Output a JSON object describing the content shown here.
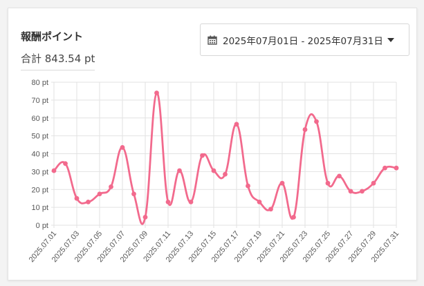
{
  "widget": {
    "title": "報酬ポイント",
    "total": "合計 843.54 pt",
    "date_range": "2025年07月01日 - 2025年07月31日"
  },
  "chart_data": {
    "type": "line",
    "title": "",
    "xlabel": "",
    "ylabel": "",
    "ylim": [
      0,
      80
    ],
    "grid": true,
    "y_ticks": [
      "0 pt",
      "10 pt",
      "20 pt",
      "30 pt",
      "40 pt",
      "50 pt",
      "60 pt",
      "70 pt",
      "80 pt"
    ],
    "x": [
      "2025.07.01",
      "2025.07.02",
      "2025.07.03",
      "2025.07.04",
      "2025.07.05",
      "2025.07.06",
      "2025.07.07",
      "2025.07.08",
      "2025.07.09",
      "2025.07.10",
      "2025.07.11",
      "2025.07.12",
      "2025.07.13",
      "2025.07.14",
      "2025.07.15",
      "2025.07.16",
      "2025.07.17",
      "2025.07.18",
      "2025.07.19",
      "2025.07.20",
      "2025.07.21",
      "2025.07.22",
      "2025.07.23",
      "2025.07.24",
      "2025.07.25",
      "2025.07.26",
      "2025.07.27",
      "2025.07.28",
      "2025.07.29",
      "2025.07.30",
      "2025.07.31"
    ],
    "x_tick_labels": [
      "2025.07.01",
      "2025.07.03",
      "2025.07.05",
      "2025.07.07",
      "2025.07.09",
      "2025.07.11",
      "2025.07.13",
      "2025.07.15",
      "2025.07.17",
      "2025.07.19",
      "2025.07.21",
      "2025.07.23",
      "2025.07.25",
      "2025.07.27",
      "2025.07.29",
      "2025.07.31"
    ],
    "series": [
      {
        "color": "#f26a8d",
        "values": [
          30.5,
          34.5,
          15,
          13,
          17.5,
          21.5,
          43.5,
          17.5,
          4.5,
          74,
          13,
          30.5,
          13,
          39,
          30.5,
          28.5,
          56.5,
          22,
          13,
          9,
          23.5,
          4.5,
          53.5,
          58,
          23.5,
          27.5,
          19,
          19,
          23.5,
          32,
          32
        ]
      }
    ]
  }
}
